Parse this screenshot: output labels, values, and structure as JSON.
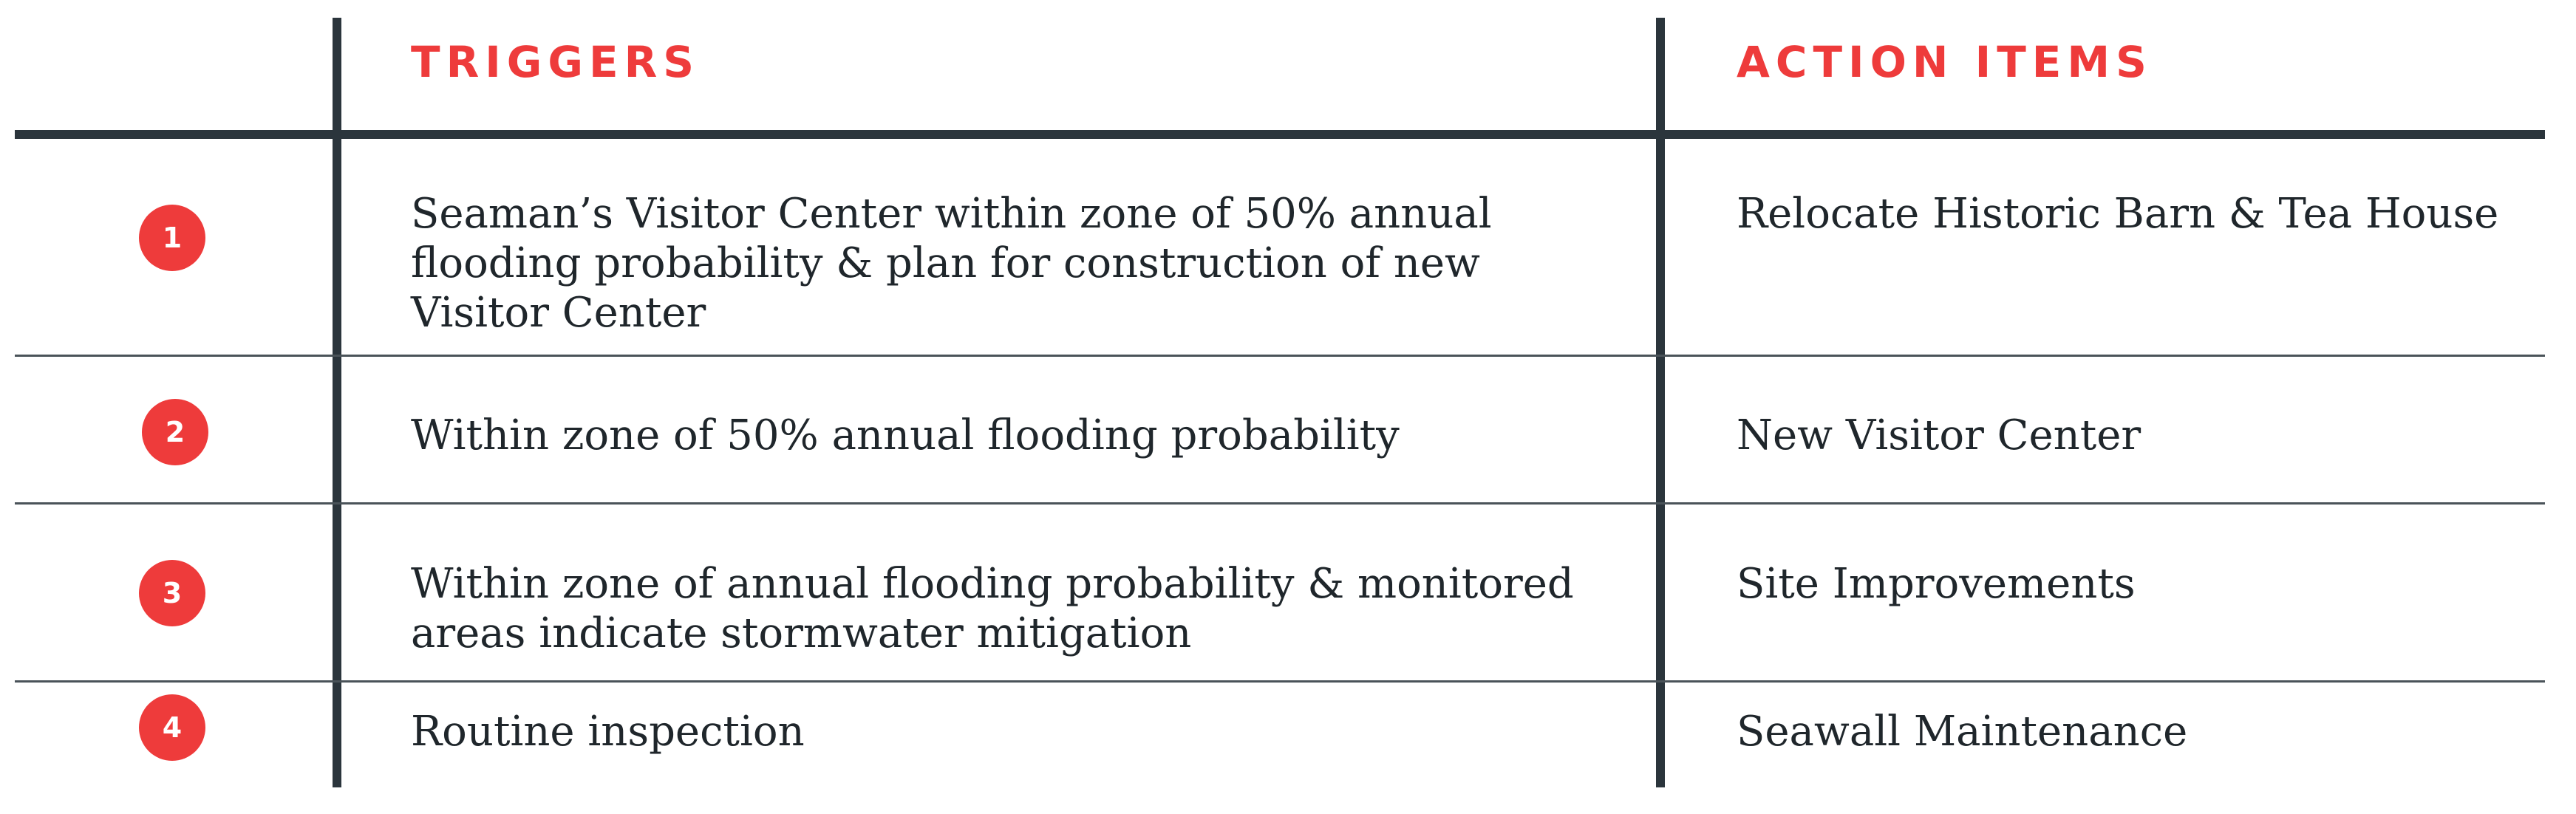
{
  "headers": {
    "triggers": "TRIGGERS",
    "action_items": "ACTION ITEMS"
  },
  "rows": [
    {
      "number": "1",
      "trigger_lines": [
        "Seaman’s Visitor Center within zone of 50% annual",
        "flooding probability & plan for construction of new",
        "Visitor Center"
      ],
      "action": "Relocate Historic Barn & Tea House"
    },
    {
      "number": "2",
      "trigger_lines": [
        "Within zone of 50% annual flooding probability"
      ],
      "action": "New Visitor Center"
    },
    {
      "number": "3",
      "trigger_lines": [
        "Within zone of annual flooding probability & monitored",
        "areas indicate stormwater mitigation"
      ],
      "action": "Site Improvements"
    },
    {
      "number": "4",
      "trigger_lines": [
        "Routine inspection"
      ],
      "action": "Seawall Maintenance"
    }
  ],
  "colors": {
    "accent": "#ee3b3b",
    "rule": "#2b353c",
    "text": "#1f262b"
  }
}
